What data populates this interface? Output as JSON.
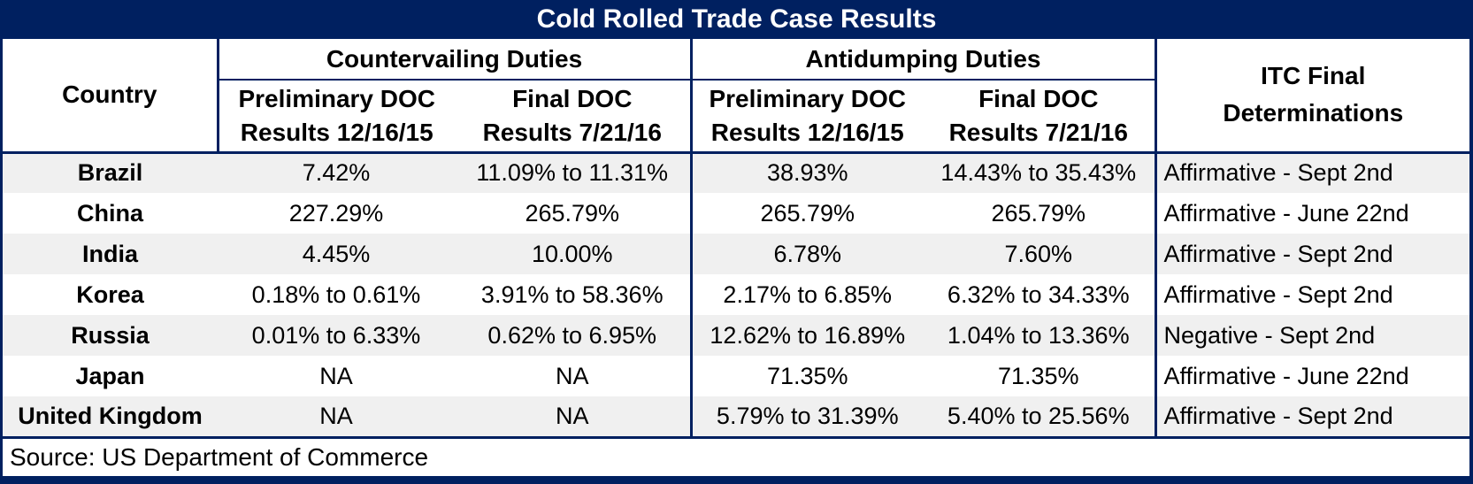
{
  "title": "Cold Rolled Trade Case Results",
  "colors": {
    "navy": "#002060",
    "stripe": "#F0F0F0",
    "title_text": "#FFFFFF",
    "body_text": "#000000"
  },
  "source": "Source: US Department of Commerce",
  "chart_data": {
    "type": "table",
    "title": "Cold Rolled Trade Case Results",
    "header": {
      "country": "Country",
      "groups": [
        {
          "label": "Countervailing Duties",
          "sub": [
            {
              "l1": "Preliminary DOC",
              "l2": "Results 12/16/15"
            },
            {
              "l1": "Final DOC",
              "l2": "Results 7/21/16"
            }
          ]
        },
        {
          "label": "Antidumping Duties",
          "sub": [
            {
              "l1": "Preliminary DOC",
              "l2": "Results 12/16/15"
            },
            {
              "l1": "Final DOC",
              "l2": "Results 7/21/16"
            }
          ]
        }
      ],
      "itc": {
        "l1": "ITC Final",
        "l2": "Determinations"
      }
    },
    "rows": [
      {
        "country": "Brazil",
        "cvd_prelim": "7.42%",
        "cvd_final": "11.09% to 11.31%",
        "ad_prelim": "38.93%",
        "ad_final": "14.43% to 35.43%",
        "itc": "Affirmative - Sept 2nd"
      },
      {
        "country": "China",
        "cvd_prelim": "227.29%",
        "cvd_final": "265.79%",
        "ad_prelim": "265.79%",
        "ad_final": "265.79%",
        "itc": "Affirmative - June 22nd"
      },
      {
        "country": "India",
        "cvd_prelim": "4.45%",
        "cvd_final": "10.00%",
        "ad_prelim": "6.78%",
        "ad_final": "7.60%",
        "itc": "Affirmative - Sept 2nd"
      },
      {
        "country": "Korea",
        "cvd_prelim": "0.18% to 0.61%",
        "cvd_final": "3.91% to 58.36%",
        "ad_prelim": "2.17% to 6.85%",
        "ad_final": "6.32% to 34.33%",
        "itc": "Affirmative - Sept 2nd"
      },
      {
        "country": "Russia",
        "cvd_prelim": "0.01% to 6.33%",
        "cvd_final": "0.62% to 6.95%",
        "ad_prelim": "12.62% to 16.89%",
        "ad_final": "1.04% to 13.36%",
        "itc": "Negative - Sept 2nd"
      },
      {
        "country": "Japan",
        "cvd_prelim": "NA",
        "cvd_final": "NA",
        "ad_prelim": "71.35%",
        "ad_final": "71.35%",
        "itc": "Affirmative - June 22nd"
      },
      {
        "country": "United Kingdom",
        "cvd_prelim": "NA",
        "cvd_final": "NA",
        "ad_prelim": "5.79% to 31.39%",
        "ad_final": "5.40% to 25.56%",
        "itc": "Affirmative - Sept 2nd"
      }
    ]
  }
}
